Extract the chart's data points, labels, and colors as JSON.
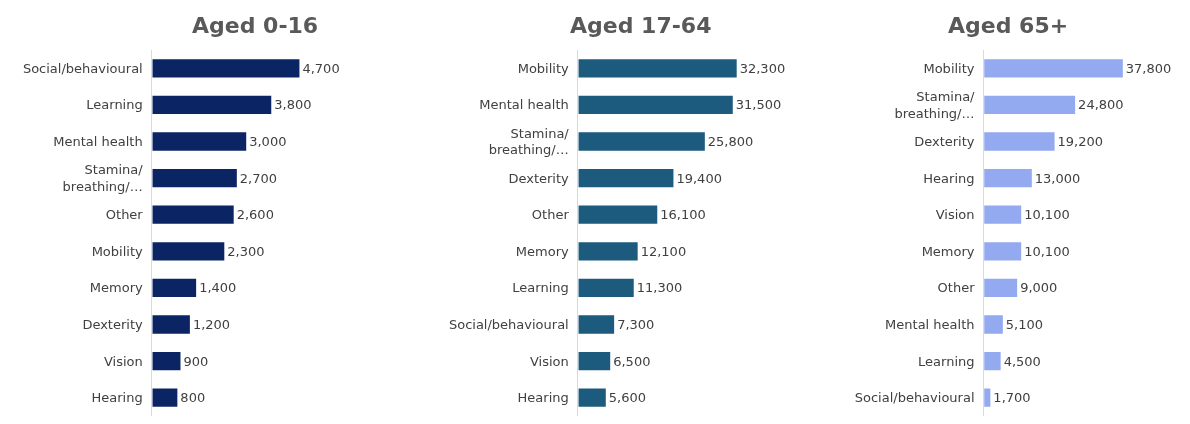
{
  "chart_data": [
    {
      "type": "bar",
      "orientation": "horizontal",
      "title": "Aged 0-16",
      "color": "#0b2463",
      "categories": [
        "Social/behavioural",
        "Learning",
        "Mental health",
        "Stamina/\nbreathing/…",
        "Other",
        "Mobility",
        "Memory",
        "Dexterity",
        "Vision",
        "Hearing"
      ],
      "values": [
        4700,
        3800,
        3000,
        2700,
        2600,
        2300,
        1400,
        1200,
        900,
        800
      ],
      "value_labels": [
        "4,700",
        "3,800",
        "3,000",
        "2,700",
        "2,600",
        "2,300",
        "1,400",
        "1,200",
        "900",
        "800"
      ]
    },
    {
      "type": "bar",
      "orientation": "horizontal",
      "title": "Aged 17-64",
      "color": "#1c5a7e",
      "categories": [
        "Mobility",
        "Mental health",
        "Stamina/\nbreathing/…",
        "Dexterity",
        "Other",
        "Memory",
        "Learning",
        "Social/behavioural",
        "Vision",
        "Hearing"
      ],
      "values": [
        32300,
        31500,
        25800,
        19400,
        16100,
        12100,
        11300,
        7300,
        6500,
        5600
      ],
      "value_labels": [
        "32,300",
        "31,500",
        "25,800",
        "19,400",
        "16,100",
        "12,100",
        "11,300",
        "7,300",
        "6,500",
        "5,600"
      ]
    },
    {
      "type": "bar",
      "orientation": "horizontal",
      "title": "Aged 65+",
      "color": "#93a9f0",
      "categories": [
        "Mobility",
        "Stamina/\nbreathing/…",
        "Dexterity",
        "Hearing",
        "Vision",
        "Memory",
        "Other",
        "Mental health",
        "Learning",
        "Social/behavioural"
      ],
      "values": [
        37800,
        24800,
        19200,
        13000,
        10100,
        10100,
        9000,
        5100,
        4500,
        1700
      ],
      "value_labels": [
        "37,800",
        "24,800",
        "19,200",
        "13,000",
        "10,100",
        "10,100",
        "9,000",
        "5,100",
        "4,500",
        "1,700"
      ]
    }
  ]
}
